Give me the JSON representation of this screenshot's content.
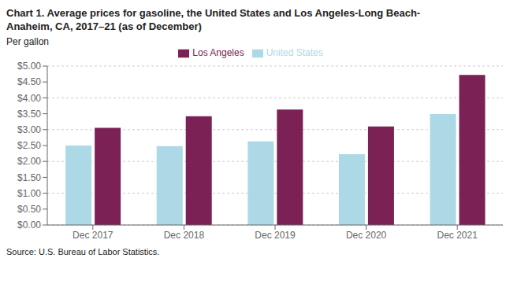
{
  "chart_data": {
    "type": "bar",
    "title": "Chart 1. Average prices for gasoline, the United States and Los Angeles-Long Beach-\nAnaheim, CA, 2017–21 (as of December)",
    "ylabel": "Per gallon",
    "annotations": [
      "Source: U.S. Bureau of Labor Statistics."
    ],
    "categories": [
      "Dec 2017",
      "Dec 2018",
      "Dec 2019",
      "Dec 2020",
      "Dec 2021"
    ],
    "series": [
      {
        "name": "United States",
        "color": "#ADD8E6",
        "values": [
          2.5,
          2.48,
          2.63,
          2.23,
          3.49
        ]
      },
      {
        "name": "Los Angeles",
        "color": "#7B2155",
        "values": [
          3.06,
          3.42,
          3.63,
          3.1,
          4.72
        ]
      }
    ],
    "ylim": [
      0,
      5.0
    ],
    "yticks": [
      {
        "value": 0.0,
        "label": "$0.00"
      },
      {
        "value": 0.5,
        "label": "$0.50"
      },
      {
        "value": 1.0,
        "label": "$1.00"
      },
      {
        "value": 1.5,
        "label": "$1.50"
      },
      {
        "value": 2.0,
        "label": "$2.00"
      },
      {
        "value": 2.5,
        "label": "$2.50"
      },
      {
        "value": 3.0,
        "label": "$3.00"
      },
      {
        "value": 3.5,
        "label": "$3.50"
      },
      {
        "value": 4.0,
        "label": "$4.00"
      },
      {
        "value": 4.5,
        "label": "$4.50"
      },
      {
        "value": 5.0,
        "label": "$5.00"
      }
    ],
    "grid": true,
    "legend": "top"
  }
}
